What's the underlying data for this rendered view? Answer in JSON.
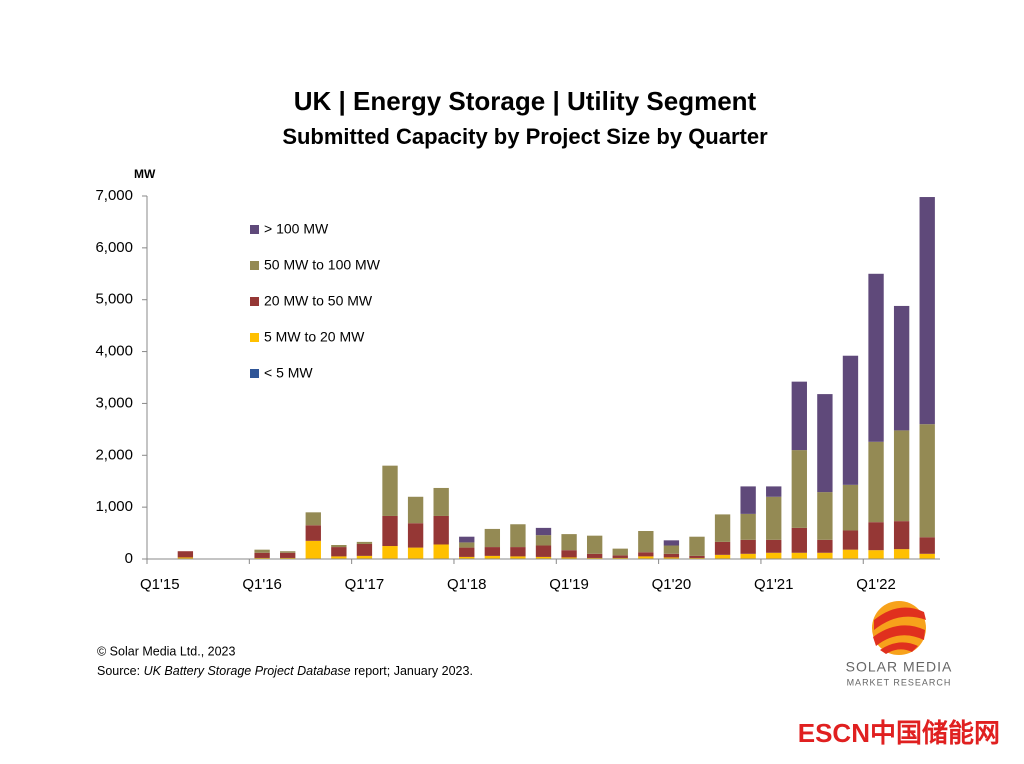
{
  "chart_data": {
    "type": "stacked-bar",
    "title": "UK | Energy Storage | Utility Segment",
    "subtitle": "Submitted Capacity by Project Size by Quarter",
    "y_label": "MW",
    "categories": [
      "Q1'15",
      null,
      null,
      null,
      "Q1'16",
      null,
      null,
      null,
      "Q1'17",
      null,
      null,
      null,
      "Q1'18",
      null,
      null,
      null,
      "Q1'19",
      null,
      null,
      null,
      "Q1'20",
      null,
      null,
      null,
      "Q1'21",
      null,
      null,
      null,
      "Q1'22",
      null,
      null
    ],
    "series": [
      {
        "name": "< 5 MW",
        "color": "#2f5597",
        "values": [
          0,
          0,
          0,
          0,
          0,
          0,
          0,
          0,
          0,
          0,
          0,
          0,
          0,
          0,
          0,
          0,
          0,
          0,
          0,
          0,
          0,
          0,
          0,
          0,
          0,
          0,
          0,
          0,
          0,
          0,
          0
        ]
      },
      {
        "name": "5 MW to 20 MW",
        "color": "#ffc000",
        "values": [
          0,
          30,
          0,
          0,
          20,
          20,
          350,
          50,
          60,
          250,
          220,
          280,
          40,
          60,
          50,
          40,
          30,
          20,
          20,
          50,
          30,
          20,
          80,
          100,
          120,
          120,
          120,
          180,
          170,
          190,
          100
        ]
      },
      {
        "name": "20 MW to 50 MW",
        "color": "#953735",
        "values": [
          0,
          120,
          0,
          0,
          100,
          100,
          300,
          180,
          230,
          580,
          470,
          550,
          180,
          170,
          180,
          220,
          140,
          80,
          50,
          80,
          70,
          40,
          250,
          270,
          250,
          480,
          250,
          370,
          540,
          540,
          320
        ]
      },
      {
        "name": "50 MW to 100 MW",
        "color": "#948a54",
        "values": [
          0,
          0,
          0,
          0,
          60,
          30,
          250,
          40,
          40,
          970,
          510,
          540,
          100,
          350,
          440,
          200,
          310,
          350,
          130,
          410,
          160,
          370,
          530,
          500,
          830,
          1500,
          920,
          880,
          1550,
          1750,
          2180
        ]
      },
      {
        "name": "> 100 MW",
        "color": "#5f497a",
        "values": [
          0,
          0,
          0,
          0,
          0,
          0,
          0,
          0,
          0,
          0,
          0,
          0,
          110,
          0,
          0,
          140,
          0,
          0,
          0,
          0,
          100,
          0,
          0,
          530,
          200,
          1320,
          1890,
          2490,
          3240,
          2400,
          4380
        ]
      }
    ],
    "ylim": [
      0,
      7000
    ],
    "yticks": [
      0,
      {
        "value": 1000,
        "label": "1,000"
      },
      {
        "value": 2000,
        "label": "2,000"
      },
      {
        "value": 3000,
        "label": "3,000"
      },
      {
        "value": 4000,
        "label": "4,000"
      },
      {
        "value": 5000,
        "label": "5,000"
      },
      {
        "value": 6000,
        "label": "6,000"
      },
      {
        "value": 7000,
        "label": "7,000"
      }
    ],
    "legend_position": "top-left",
    "grid": false
  },
  "footer": {
    "copyright": "© Solar Media Ltd., 2023",
    "source_prefix": "Source: ",
    "source_title": "UK Battery Storage Project Database",
    "source_suffix": " report; January 2023."
  },
  "logo": {
    "name": "SOLAR MEDIA",
    "tagline": "MARKET RESEARCH"
  },
  "watermark": "ESCN中国储能网"
}
